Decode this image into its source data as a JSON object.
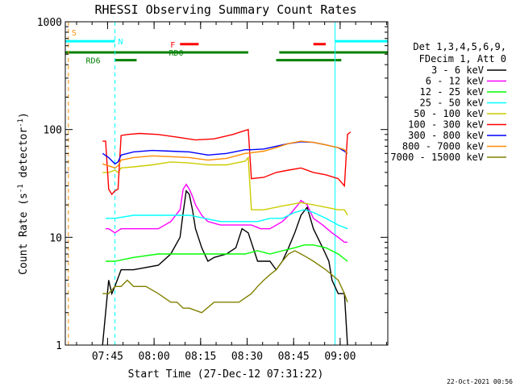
{
  "chart_data": {
    "type": "line",
    "title": "RHESSI Observing Summary Count Rates",
    "xlabel": "Start Time (27-Dec-12 07:31:22)",
    "ylabel_main": "Count Rate (s",
    "ylabel_sup1": "-1",
    "ylabel_mid": " detector",
    "ylabel_sup2": "-1",
    "ylabel_end": ")",
    "ylog": true,
    "ylim": [
      1,
      1000
    ],
    "xlim_minutes": [
      0,
      104
    ],
    "x_ticks": [
      {
        "label": "07:45",
        "minute": 13.63
      },
      {
        "label": "08:00",
        "minute": 28.63
      },
      {
        "label": "08:15",
        "minute": 43.63
      },
      {
        "label": "08:30",
        "minute": 58.63
      },
      {
        "label": "08:45",
        "minute": 73.63
      },
      {
        "label": "09:00",
        "minute": 88.63
      }
    ],
    "y_ticks": [
      {
        "label": "1",
        "value": 1
      },
      {
        "label": "10",
        "value": 10
      },
      {
        "label": "100",
        "value": 100
      },
      {
        "label": "1000",
        "value": 1000
      }
    ],
    "legend_header": [
      "Det 1,3,4,5,6,9,",
      "FDecim 1, Att 0"
    ],
    "footer_date": "22-Oct-2021 00:56",
    "flags": [
      {
        "label": "S",
        "color": "#ff8c00",
        "level": 800,
        "segments": [],
        "marker_minute": 1
      },
      {
        "label": "N",
        "color": "#00ffff",
        "level": 660,
        "segments": [
          [
            0,
            16
          ],
          [
            87,
            104
          ]
        ]
      },
      {
        "label": "F",
        "color": "#ff0000",
        "level": 620,
        "segments": [
          [
            37,
            43
          ],
          [
            80,
            84
          ]
        ]
      },
      {
        "label": "RD0",
        "color": "#008000",
        "level": 520,
        "segments": [
          [
            0,
            59
          ],
          [
            69,
            104
          ]
        ]
      },
      {
        "label": "RD6",
        "color": "#008000",
        "level": 440,
        "segments": [
          [
            16,
            23
          ],
          [
            68,
            89
          ]
        ]
      }
    ],
    "vlines": [
      {
        "minute": 1,
        "color": "#ff8c00",
        "dashed": true
      },
      {
        "minute": 16,
        "color": "#00ffff",
        "dashed": true
      },
      {
        "minute": 87,
        "color": "#00ffff",
        "dashed": false
      },
      {
        "minute": 104,
        "color": "#00ffff",
        "dashed": true
      }
    ],
    "series": [
      {
        "name": "3 - 6 keV",
        "color": "#000000",
        "x": [
          12,
          13,
          14,
          15,
          16,
          18,
          22,
          30,
          34,
          37,
          38,
          39,
          40,
          41,
          42,
          44,
          46,
          48,
          52,
          55,
          57,
          59,
          62,
          66,
          68,
          70,
          72,
          74,
          76,
          78,
          80,
          83,
          85,
          86,
          88,
          90,
          91
        ],
        "y": [
          1,
          2,
          4,
          3,
          3.5,
          5,
          5,
          5.5,
          7,
          10,
          17,
          27,
          25,
          18,
          12,
          8,
          6,
          6.5,
          7,
          8,
          12,
          11,
          6,
          6,
          5,
          6,
          8,
          11,
          16,
          19,
          12,
          8,
          6,
          4,
          3,
          3,
          1
        ]
      },
      {
        "name": "6 - 12 keV",
        "color": "#ff00ff",
        "x": [
          13,
          14,
          16,
          18,
          22,
          30,
          34,
          37,
          38,
          39,
          40,
          41,
          42,
          44,
          46,
          50,
          55,
          58,
          60,
          63,
          66,
          70,
          73,
          75,
          76,
          78,
          80,
          83,
          86,
          88,
          90,
          91
        ],
        "y": [
          12,
          12,
          11,
          12,
          12,
          12,
          14,
          18,
          28,
          31,
          28,
          24,
          20,
          16,
          14,
          13,
          13,
          13,
          13,
          12,
          12,
          14,
          17,
          20,
          22,
          20,
          15,
          13,
          11,
          10,
          9,
          9
        ]
      },
      {
        "name": "12 - 25 keV",
        "color": "#00ff00",
        "x": [
          13,
          16,
          22,
          30,
          40,
          50,
          58,
          62,
          66,
          70,
          74,
          77,
          80,
          84,
          88,
          91
        ],
        "y": [
          6,
          6,
          6.5,
          7,
          7,
          7,
          7,
          7.5,
          7,
          7.5,
          8,
          8.5,
          8.5,
          8,
          7,
          6
        ]
      },
      {
        "name": "25 - 50 keV",
        "color": "#00ffff",
        "x": [
          13,
          16,
          22,
          30,
          40,
          50,
          58,
          62,
          66,
          70,
          74,
          77,
          80,
          84,
          88,
          91
        ],
        "y": [
          15,
          15,
          16,
          16,
          16,
          14,
          14,
          14,
          15,
          15,
          17,
          18,
          17,
          15,
          13,
          12
        ]
      },
      {
        "name": "50 - 100 keV",
        "color": "#cccc00",
        "x": [
          12,
          14,
          16,
          17,
          18,
          22,
          28,
          34,
          40,
          46,
          52,
          58,
          59,
          60,
          64,
          68,
          72,
          76,
          80,
          84,
          88,
          90,
          91
        ],
        "y": [
          40,
          40,
          42,
          40,
          44,
          45,
          47,
          50,
          49,
          47,
          47,
          51,
          55,
          18,
          18,
          19,
          20,
          21,
          20,
          19,
          18,
          18,
          16
        ]
      },
      {
        "name": "100 - 300 keV",
        "color": "#ff0000",
        "x": [
          12,
          13,
          14,
          15,
          16,
          17,
          18,
          20,
          24,
          30,
          36,
          42,
          48,
          54,
          58,
          59,
          60,
          64,
          68,
          72,
          76,
          80,
          84,
          88,
          90,
          91,
          92
        ],
        "y": [
          78,
          78,
          28,
          25,
          27,
          28,
          88,
          90,
          92,
          90,
          85,
          80,
          82,
          90,
          98,
          100,
          35,
          36,
          40,
          42,
          44,
          40,
          38,
          35,
          30,
          90,
          95
        ]
      },
      {
        "name": "300 - 800 keV",
        "color": "#0000ff",
        "x": [
          12,
          14,
          16,
          17,
          18,
          22,
          28,
          34,
          40,
          46,
          52,
          58,
          60,
          64,
          68,
          72,
          76,
          80,
          84,
          88,
          90,
          91
        ],
        "y": [
          60,
          55,
          48,
          50,
          58,
          62,
          64,
          63,
          62,
          58,
          60,
          65,
          65,
          66,
          70,
          74,
          77,
          76,
          72,
          68,
          63,
          60
        ]
      },
      {
        "name": "800 - 7000 keV",
        "color": "#ff8c00",
        "x": [
          12,
          14,
          16,
          17,
          18,
          22,
          28,
          34,
          40,
          46,
          52,
          58,
          60,
          64,
          68,
          72,
          76,
          80,
          84,
          88,
          90,
          91
        ],
        "y": [
          48,
          46,
          44,
          46,
          52,
          55,
          57,
          56,
          55,
          52,
          54,
          60,
          61,
          63,
          68,
          74,
          78,
          76,
          72,
          68,
          65,
          60
        ]
      },
      {
        "name": "7000 - 15000 keV",
        "color": "#808000",
        "x": [
          12,
          14,
          16,
          18,
          20,
          22,
          26,
          30,
          34,
          36,
          38,
          40,
          44,
          48,
          52,
          56,
          60,
          62,
          64,
          66,
          68,
          70,
          72,
          74,
          76,
          78,
          80,
          84,
          88,
          90,
          91
        ],
        "y": [
          3,
          3,
          3.5,
          3.5,
          4,
          3.5,
          3.5,
          3,
          2.5,
          2.5,
          2.2,
          2.2,
          2,
          2.5,
          2.5,
          2.5,
          3,
          3.5,
          4,
          4.5,
          5,
          6,
          7,
          7.5,
          7,
          6.5,
          6,
          5,
          4,
          3,
          2.5
        ]
      }
    ]
  }
}
